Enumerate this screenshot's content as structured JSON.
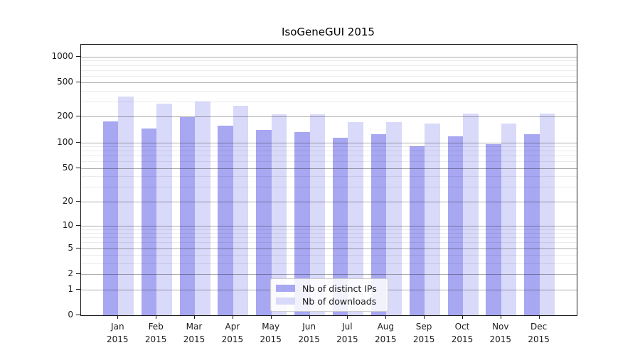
{
  "chart_data": {
    "type": "bar",
    "title": "IsoGeneGUI 2015",
    "categories": [
      "Jan",
      "Feb",
      "Mar",
      "Apr",
      "May",
      "Jun",
      "Jul",
      "Aug",
      "Sep",
      "Oct",
      "Nov",
      "Dec"
    ],
    "x_year_label": "2015",
    "series": [
      {
        "name": "Nb of distinct IPs",
        "color": "#a7a7f2",
        "values": [
          175,
          145,
          198,
          157,
          140,
          133,
          113,
          124,
          90,
          117,
          95,
          126
        ]
      },
      {
        "name": "Nb of downloads",
        "color": "#d9d9fa",
        "values": [
          343,
          286,
          298,
          269,
          213,
          212,
          172,
          174,
          168,
          217,
          167,
          219
        ]
      }
    ],
    "y_axis": {
      "scale": "log1p",
      "tick_labels": [
        0,
        1,
        2,
        5,
        10,
        20,
        50,
        100,
        200,
        500,
        1000
      ],
      "minor_gridlines": [
        3,
        4,
        6,
        7,
        8,
        9,
        30,
        40,
        60,
        70,
        80,
        90,
        300,
        400,
        600,
        700,
        800,
        900
      ],
      "top_value": 1373
    },
    "grid": true,
    "legend_position": "lower center"
  }
}
